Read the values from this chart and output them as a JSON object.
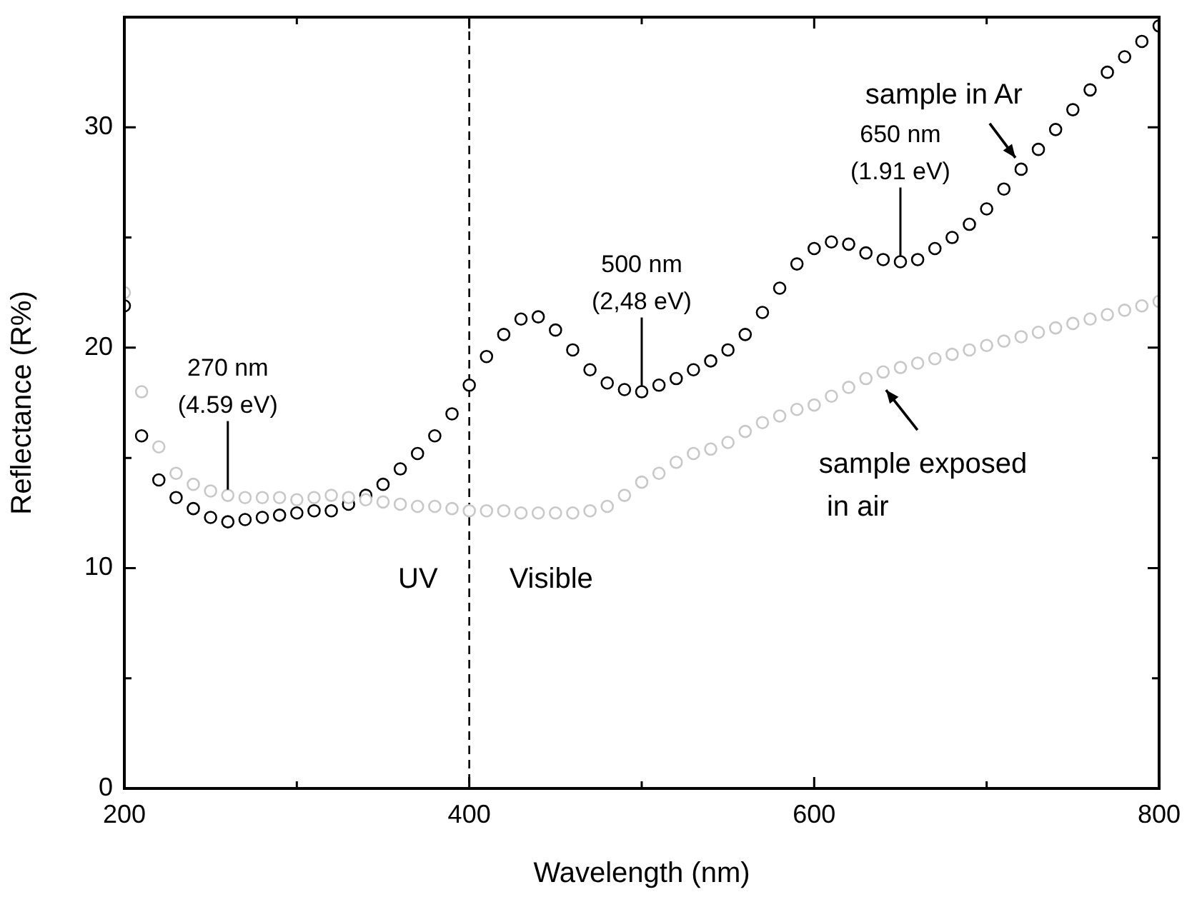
{
  "chart_data": {
    "type": "scatter",
    "xlabel": "Wavelength (nm)",
    "ylabel": "Reflectance (R%)",
    "x": [
      200,
      210,
      220,
      230,
      240,
      250,
      260,
      270,
      280,
      290,
      300,
      310,
      320,
      330,
      340,
      350,
      360,
      370,
      380,
      390,
      400,
      410,
      420,
      430,
      440,
      450,
      460,
      470,
      480,
      490,
      500,
      510,
      520,
      530,
      540,
      550,
      560,
      570,
      580,
      590,
      600,
      610,
      620,
      630,
      640,
      650,
      660,
      670,
      680,
      690,
      700,
      710,
      720,
      730,
      740,
      750,
      760,
      770,
      780,
      790,
      800
    ],
    "series": [
      {
        "color": "#000000",
        "values": [
          21.9,
          16.0,
          14.0,
          13.2,
          12.7,
          12.3,
          12.1,
          12.2,
          12.3,
          12.4,
          12.5,
          12.6,
          12.6,
          12.9,
          13.3,
          13.8,
          14.5,
          15.2,
          16.0,
          17.0,
          18.3,
          19.6,
          20.6,
          21.3,
          21.4,
          20.8,
          19.9,
          19.0,
          18.4,
          18.1,
          18.0,
          18.3,
          18.6,
          19.0,
          19.4,
          19.9,
          20.6,
          21.6,
          22.7,
          23.8,
          24.5,
          24.8,
          24.7,
          24.3,
          24.0,
          23.9,
          24.0,
          24.5,
          25.0,
          25.6,
          26.3,
          27.2,
          28.1,
          29.0,
          29.9,
          30.8,
          31.7,
          32.5,
          33.2,
          33.9,
          34.6
        ]
      },
      {
        "color": "#c8c8c8",
        "values": [
          22.5,
          18.0,
          15.5,
          14.3,
          13.8,
          13.5,
          13.3,
          13.2,
          13.2,
          13.2,
          13.1,
          13.2,
          13.3,
          13.2,
          13.1,
          13.0,
          12.9,
          12.8,
          12.8,
          12.7,
          12.6,
          12.6,
          12.6,
          12.5,
          12.5,
          12.5,
          12.5,
          12.6,
          12.8,
          13.3,
          13.9,
          14.3,
          14.8,
          15.2,
          15.4,
          15.7,
          16.2,
          16.6,
          16.9,
          17.2,
          17.4,
          17.8,
          18.2,
          18.6,
          18.9,
          19.1,
          19.3,
          19.5,
          19.7,
          19.9,
          20.1,
          20.3,
          20.5,
          20.7,
          20.9,
          21.1,
          21.3,
          21.5,
          21.7,
          21.9,
          22.1
        ]
      }
    ],
    "xlim": [
      200,
      800
    ],
    "xticks": [
      200,
      {
        "value": 300,
        "label": null
      },
      400,
      {
        "value": 500,
        "label": null
      },
      600,
      {
        "value": 700,
        "label": null
      },
      800
    ],
    "ylim": [
      0,
      35
    ],
    "yticks": [
      0,
      {
        "value": 5,
        "label": null
      },
      10,
      {
        "value": 15,
        "label": null
      },
      20,
      {
        "value": 25,
        "label": null
      },
      30
    ],
    "ref_lines": [
      {
        "axis": "x",
        "value": 400,
        "line_style": "dashed",
        "color": "#000000"
      }
    ],
    "annotations": [
      {
        "text": "270 nm\n(4.59 eV)",
        "x": 260,
        "y": 13.3
      },
      {
        "text": "500 nm\n(2,48 eV)",
        "x": 500,
        "y": 18.0
      },
      {
        "text": "650 nm\n(1.91 eV)",
        "x": 650,
        "y": 23.9
      },
      {
        "text": "sample in Ar",
        "x": 720,
        "y": 28.1
      },
      {
        "text": "sample exposed\n in air",
        "x": 640,
        "y": 18.6
      },
      "UV",
      "Visible"
    ],
    "marker": "circle",
    "legend": false,
    "grid": false
  }
}
